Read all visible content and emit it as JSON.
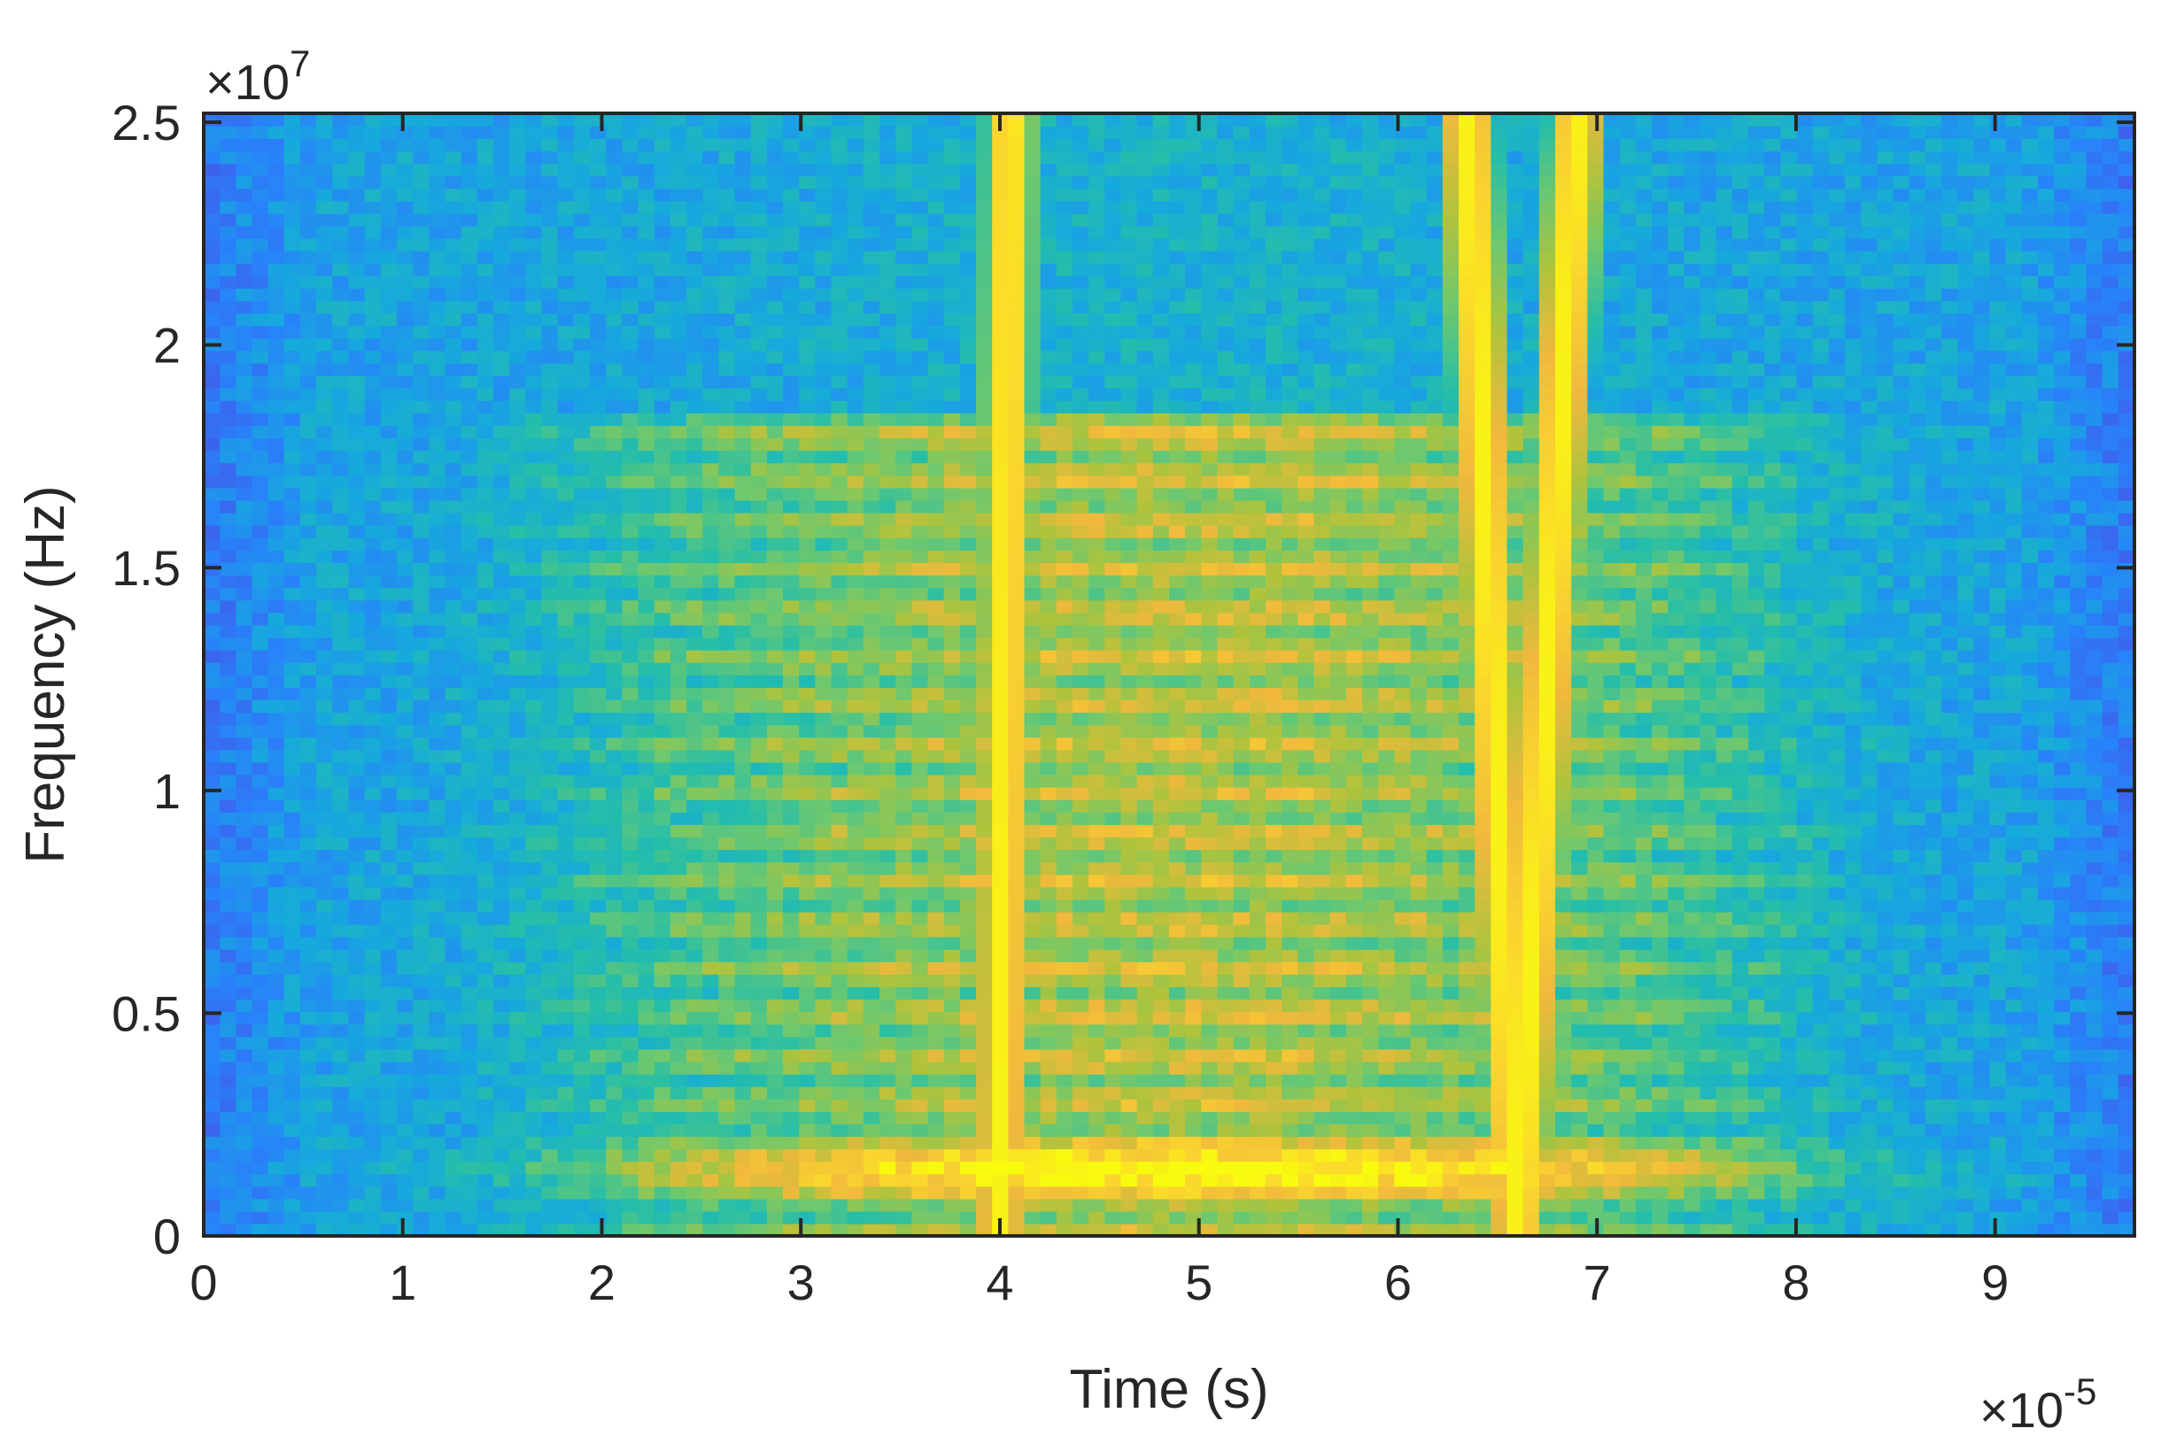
{
  "chart_data": {
    "type": "heatmap",
    "title": "",
    "xlabel": "Time (s)",
    "ylabel": "Frequency (Hz)",
    "x_multiplier_label": "×10",
    "x_multiplier_exponent": "-5",
    "y_multiplier_label": "×10",
    "y_multiplier_exponent": "7",
    "xlim": [
      0,
      9.7
    ],
    "ylim": [
      0,
      2.52
    ],
    "x_scale_factor": 1e-05,
    "y_scale_factor": 10000000.0,
    "x_ticks": [
      0,
      1,
      2,
      3,
      4,
      5,
      6,
      7,
      8,
      9
    ],
    "x_tick_labels": [
      "0",
      "1",
      "2",
      "3",
      "4",
      "5",
      "6",
      "7",
      "8",
      "9"
    ],
    "y_ticks": [
      0,
      0.5,
      1,
      1.5,
      2,
      2.5
    ],
    "y_tick_labels": [
      "0",
      "0.5",
      "1",
      "1.5",
      "2",
      "2.5"
    ],
    "colormap": "parula",
    "grid": false,
    "features": {
      "harmonic_band_region": {
        "x_range": [
          1.6,
          8.2
        ],
        "y_range": [
          0,
          1.85
        ]
      },
      "fundamental_band_y": 0.15,
      "harmonic_band_spacing": 0.1,
      "vertical_tracks": [
        {
          "x_at_bottom": 4.0,
          "x_at_top": 4.05,
          "width": 0.18
        },
        {
          "x_at_bottom": 6.6,
          "x_at_top": 6.35,
          "width": 0.2
        },
        {
          "x_at_bottom": 6.6,
          "x_at_top": 6.9,
          "width": 0.2
        }
      ]
    }
  }
}
